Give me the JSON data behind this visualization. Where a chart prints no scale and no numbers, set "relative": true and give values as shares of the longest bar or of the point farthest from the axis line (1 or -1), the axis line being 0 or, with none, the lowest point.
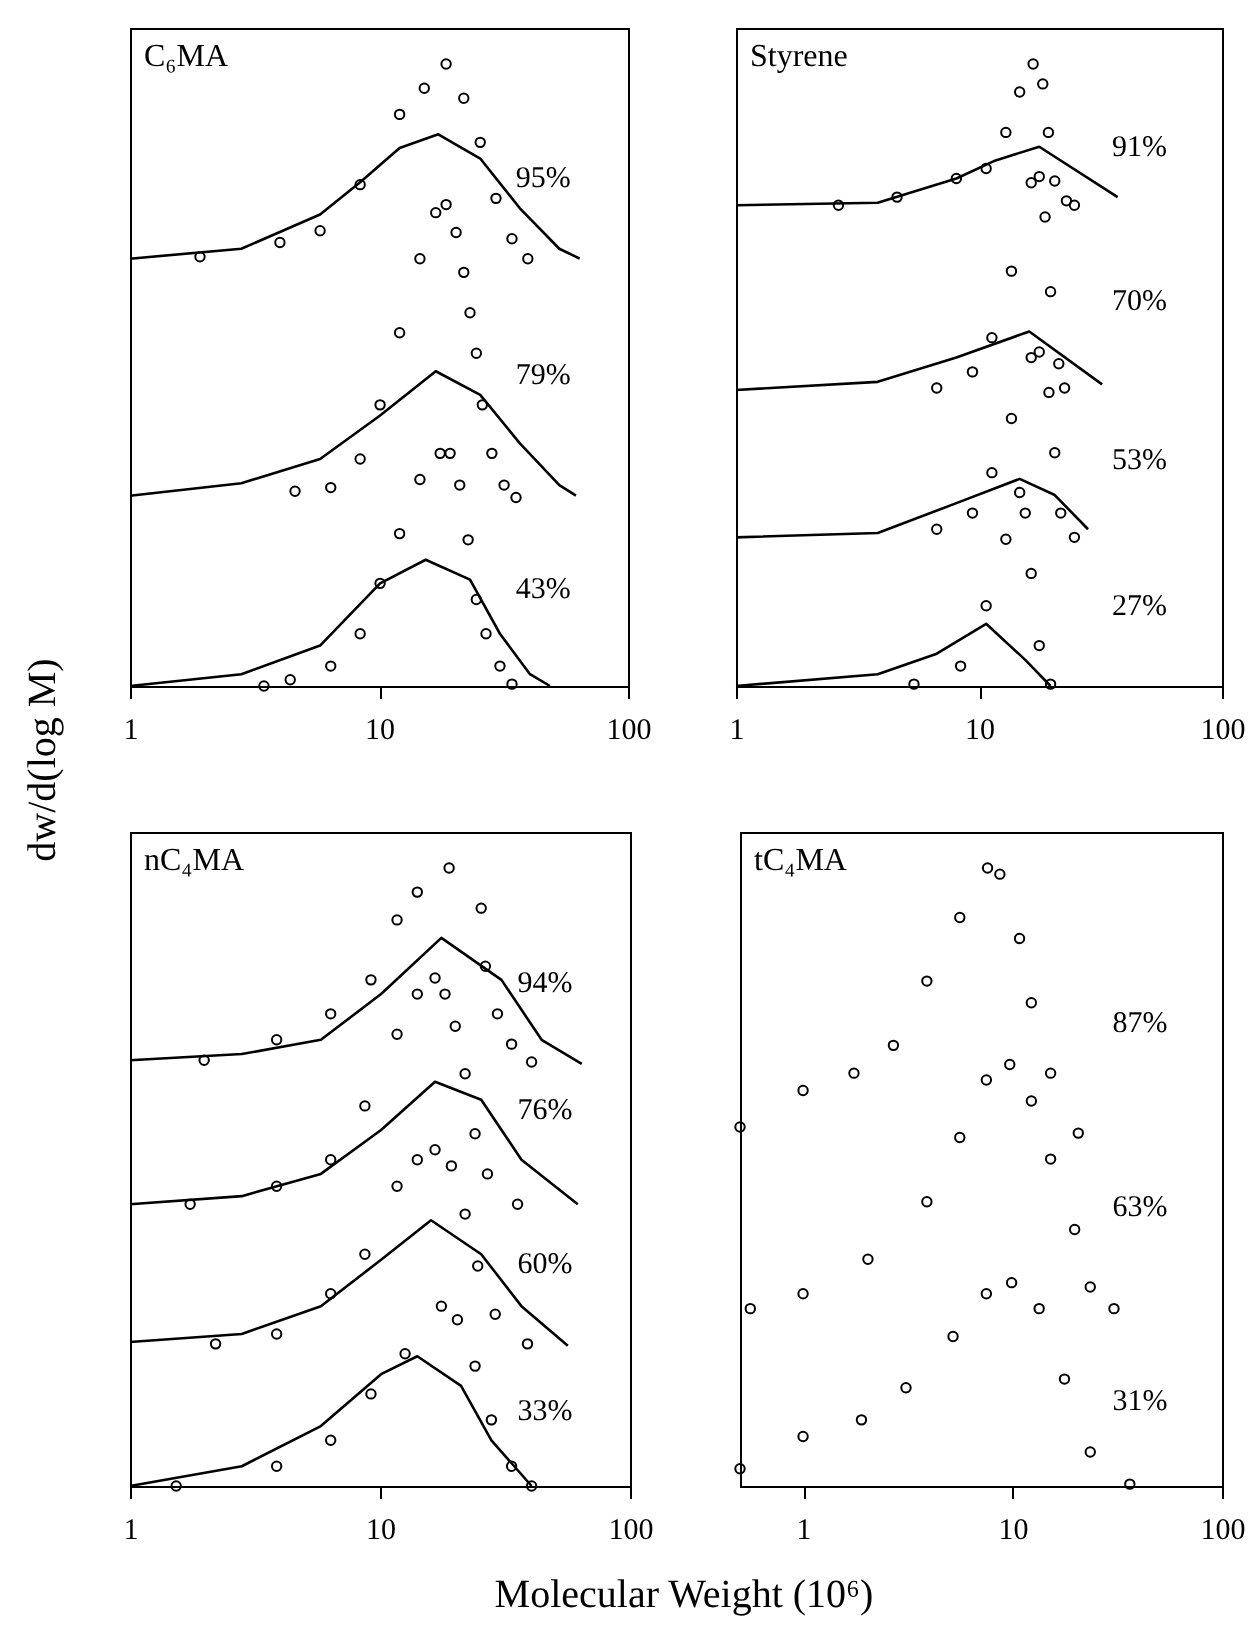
{
  "chart_data": [
    {
      "type": "line",
      "title": "C₆MA",
      "ylabel": "dw/d(log M)",
      "relative": true,
      "log": "x",
      "xlim": [
        1,
        100
      ],
      "xticks": [
        1,
        10,
        100
      ],
      "grid": false,
      "series": [
        {
          "type": "scatter",
          "marker": "circle",
          "color": "#000000",
          "x": [
            1.91,
            4.0,
            5.8,
            8.4,
            12.1,
            15.2,
            18.6,
            21.9,
            25.5,
            29.5,
            34.2,
            39.6
          ],
          "values": [
            0.69,
            0.713,
            0.732,
            0.806,
            0.919,
            0.961,
            1.0,
            0.945,
            0.874,
            0.784,
            0.719,
            0.687
          ]
        },
        {
          "color": "#000000",
          "x": [
            1,
            2.8,
            5.8,
            8.4,
            12.1,
            17.3,
            25.5,
            36.8,
            53,
            64
          ],
          "values": [
            0.687,
            0.703,
            0.758,
            0.81,
            0.865,
            0.887,
            0.848,
            0.768,
            0.703,
            0.687
          ]
        },
        {
          "type": "scatter",
          "marker": "circle",
          "color": "#000000",
          "x": [
            4.6,
            6.4,
            8.4,
            10.1,
            12.1,
            14.6,
            16.9,
            18.6,
            20.4,
            21.9,
            23.2,
            24.6,
            26.0,
            28.4,
            31.8,
            35.5
          ],
          "values": [
            0.313,
            0.319,
            0.365,
            0.452,
            0.568,
            0.687,
            0.761,
            0.774,
            0.729,
            0.665,
            0.6,
            0.535,
            0.452,
            0.374,
            0.323,
            0.303
          ]
        },
        {
          "color": "#000000",
          "x": [
            1,
            2.8,
            5.8,
            10.1,
            16.9,
            25.5,
            36.8,
            53,
            61.8
          ],
          "values": [
            0.306,
            0.326,
            0.365,
            0.435,
            0.506,
            0.468,
            0.39,
            0.323,
            0.306
          ]
        },
        {
          "type": "scatter",
          "marker": "circle",
          "color": "#000000",
          "x": [
            3.45,
            4.4,
            6.4,
            8.4,
            10.1,
            12.1,
            14.6,
            17.6,
            19.3,
            21.1,
            22.8,
            24.6,
            26.9,
            30.6,
            34.2
          ],
          "values": [
            0,
            0.01,
            0.032,
            0.084,
            0.165,
            0.245,
            0.332,
            0.374,
            0.374,
            0.323,
            0.235,
            0.139,
            0.084,
            0.032,
            0.003
          ]
        },
        {
          "color": "#000000",
          "x": [
            1,
            2.8,
            5.8,
            10.1,
            15.4,
            23.2,
            30.6,
            40.4,
            48.6
          ],
          "values": [
            0,
            0.019,
            0.065,
            0.165,
            0.203,
            0.171,
            0.084,
            0.019,
            0
          ]
        }
      ],
      "annotations": [
        "95%",
        "79%",
        "43%"
      ]
    },
    {
      "type": "line",
      "title": "Styrene",
      "relative": true,
      "log": "x",
      "xlim": [
        1,
        100
      ],
      "xticks": [
        1,
        10,
        100
      ],
      "grid": false,
      "series": [
        {
          "type": "scatter",
          "marker": "circle",
          "color": "#000000",
          "x": [
            2.64,
            4.6,
            8.07,
            10.7,
            12.9,
            14.7,
            16.7,
            18.3,
            19.3,
            20.5,
            22.9,
            24.7
          ],
          "values": [
            0.773,
            0.786,
            0.816,
            0.832,
            0.89,
            0.955,
            1.0,
            0.968,
            0.89,
            0.812,
            0.78,
            0.773
          ]
        },
        {
          "color": "#000000",
          "x": [
            1,
            3.83,
            8.07,
            11.7,
            17.7,
            37.2
          ],
          "values": [
            0.773,
            0.777,
            0.816,
            0.845,
            0.867,
            0.786
          ]
        },
        {
          "type": "scatter",
          "marker": "circle",
          "color": "#000000",
          "x": [
            6.7,
            9.4,
            11.3,
            13.6,
            16.4,
            17.7,
            18.7,
            19.7,
            21.3,
            22.5
          ],
          "values": [
            0.479,
            0.505,
            0.56,
            0.667,
            0.809,
            0.819,
            0.754,
            0.634,
            0.518,
            0.479
          ]
        },
        {
          "color": "#000000",
          "x": [
            1,
            3.83,
            8.07,
            16.1,
            32.1
          ],
          "values": [
            0.476,
            0.489,
            0.528,
            0.57,
            0.485
          ]
        },
        {
          "type": "scatter",
          "marker": "circle",
          "color": "#000000",
          "x": [
            6.7,
            9.4,
            11.3,
            13.6,
            16.4,
            17.7,
            19.4,
            20.5,
            21.7,
            24.7
          ],
          "values": [
            0.252,
            0.278,
            0.343,
            0.43,
            0.528,
            0.537,
            0.472,
            0.375,
            0.278,
            0.239
          ]
        },
        {
          "color": "#000000",
          "x": [
            1,
            3.83,
            8.07,
            14.7,
            20.5,
            28.1
          ],
          "values": [
            0.239,
            0.246,
            0.294,
            0.333,
            0.307,
            0.252
          ]
        },
        {
          "type": "scatter",
          "marker": "circle",
          "color": "#000000",
          "x": [
            5.4,
            8.4,
            10.7,
            12.9,
            14.7,
            15.5,
            16.4,
            17.7,
            19.7
          ],
          "values": [
            0.003,
            0.032,
            0.129,
            0.236,
            0.311,
            0.278,
            0.181,
            0.065,
            0.003
          ]
        },
        {
          "color": "#000000",
          "x": [
            1,
            3.83,
            6.7,
            10.7,
            15.5,
            19.7
          ],
          "values": [
            0,
            0.019,
            0.052,
            0.1,
            0.042,
            0
          ]
        }
      ],
      "annotations": [
        "91%",
        "70%",
        "53%",
        "27%"
      ]
    },
    {
      "type": "line",
      "title": "nC₄MA",
      "xlabel": "Molecular Weight (10⁶)",
      "relative": true,
      "log": "x",
      "xlim": [
        1,
        100
      ],
      "xticks": [
        1,
        10,
        100
      ],
      "grid": false,
      "series": [
        {
          "type": "scatter",
          "marker": "circle",
          "color": "#000000",
          "x": [
            1.98,
            3.86,
            6.35,
            9.2,
            11.7,
            14.1,
            18.9,
            25.4,
            26.4,
            29.5,
            33.6,
            40.4
          ],
          "values": [
            0.689,
            0.722,
            0.764,
            0.819,
            0.916,
            0.961,
            1.0,
            0.935,
            0.841,
            0.764,
            0.715,
            0.686
          ]
        },
        {
          "color": "#000000",
          "x": [
            1,
            2.8,
            5.8,
            10.1,
            17.6,
            30.6,
            44.3,
            64.1
          ],
          "values": [
            0.689,
            0.699,
            0.722,
            0.796,
            0.887,
            0.819,
            0.722,
            0.683
          ]
        },
        {
          "type": "scatter",
          "marker": "circle",
          "color": "#000000",
          "x": [
            1.74,
            3.86,
            6.35,
            8.7,
            11.7,
            14.1,
            16.6,
            18.2,
            20.0,
            21.9,
            24.0,
            26.9,
            35.5
          ],
          "values": [
            0.456,
            0.485,
            0.528,
            0.615,
            0.731,
            0.796,
            0.822,
            0.796,
            0.744,
            0.667,
            0.57,
            0.505,
            0.456
          ]
        },
        {
          "color": "#000000",
          "x": [
            1,
            2.8,
            5.8,
            10.1,
            16.6,
            25.4,
            36.8,
            61.8
          ],
          "values": [
            0.456,
            0.469,
            0.505,
            0.576,
            0.654,
            0.625,
            0.528,
            0.456
          ]
        },
        {
          "type": "scatter",
          "marker": "circle",
          "color": "#000000",
          "x": [
            2.2,
            3.86,
            6.35,
            8.7,
            11.7,
            14.1,
            16.6,
            19.3,
            21.9,
            24.6,
            28.9,
            38.9
          ],
          "values": [
            0.23,
            0.246,
            0.311,
            0.375,
            0.485,
            0.528,
            0.544,
            0.518,
            0.44,
            0.356,
            0.278,
            0.23
          ]
        },
        {
          "color": "#000000",
          "x": [
            1,
            2.8,
            5.8,
            10.1,
            16.0,
            25.4,
            36.8,
            56.4
          ],
          "values": [
            0.233,
            0.246,
            0.291,
            0.366,
            0.43,
            0.375,
            0.291,
            0.227
          ]
        },
        {
          "type": "scatter",
          "marker": "circle",
          "color": "#000000",
          "x": [
            1.53,
            3.86,
            6.35,
            9.2,
            12.6,
            17.6,
            20.4,
            24.0,
            27.9,
            33.6,
            40.4
          ],
          "values": [
            0,
            0.032,
            0.074,
            0.149,
            0.214,
            0.291,
            0.269,
            0.194,
            0.107,
            0.032,
            0
          ]
        },
        {
          "color": "#000000",
          "x": [
            1,
            2.8,
            5.8,
            10.1,
            14.1,
            21.1,
            27.9,
            40.4
          ],
          "values": [
            0,
            0.032,
            0.097,
            0.181,
            0.21,
            0.162,
            0.074,
            0
          ]
        }
      ],
      "annotations": [
        "94%",
        "76%",
        "60%",
        "33%"
      ]
    },
    {
      "type": "scatter",
      "title": "tC₄MA",
      "relative": true,
      "log": "x",
      "xlim": [
        0.5,
        100
      ],
      "xticks": [
        1,
        10,
        100
      ],
      "marker": "circle",
      "grid": false,
      "series": [
        {
          "color": "#000000",
          "x": [
            0.5,
            1.0,
            1.75,
            2.7,
            3.9,
            5.6,
            7.6,
            8.7,
            10.8,
            12.3,
            15.2,
            20.6
          ],
          "values": [
            0.581,
            0.64,
            0.668,
            0.713,
            0.817,
            0.92,
            1.0,
            0.99,
            0.886,
            0.782,
            0.668,
            0.571
          ]
        },
        {
          "color": "#000000",
          "x": [
            0.56,
            1.0,
            2.04,
            3.9,
            5.6,
            7.5,
            9.7,
            12.3,
            15.2,
            19.8,
            23.5,
            30.5
          ],
          "values": [
            0.287,
            0.311,
            0.367,
            0.46,
            0.564,
            0.657,
            0.682,
            0.623,
            0.529,
            0.415,
            0.322,
            0.287
          ]
        },
        {
          "color": "#000000",
          "x": [
            0.5,
            1.0,
            1.9,
            3.1,
            5.2,
            7.5,
            9.9,
            13.4,
            17.7,
            23.5,
            36.3
          ],
          "values": [
            0.028,
            0.08,
            0.107,
            0.159,
            0.242,
            0.311,
            0.329,
            0.287,
            0.173,
            0.055,
            0.003
          ]
        }
      ],
      "annotations": [
        "87%",
        "63%",
        "31%"
      ]
    }
  ]
}
